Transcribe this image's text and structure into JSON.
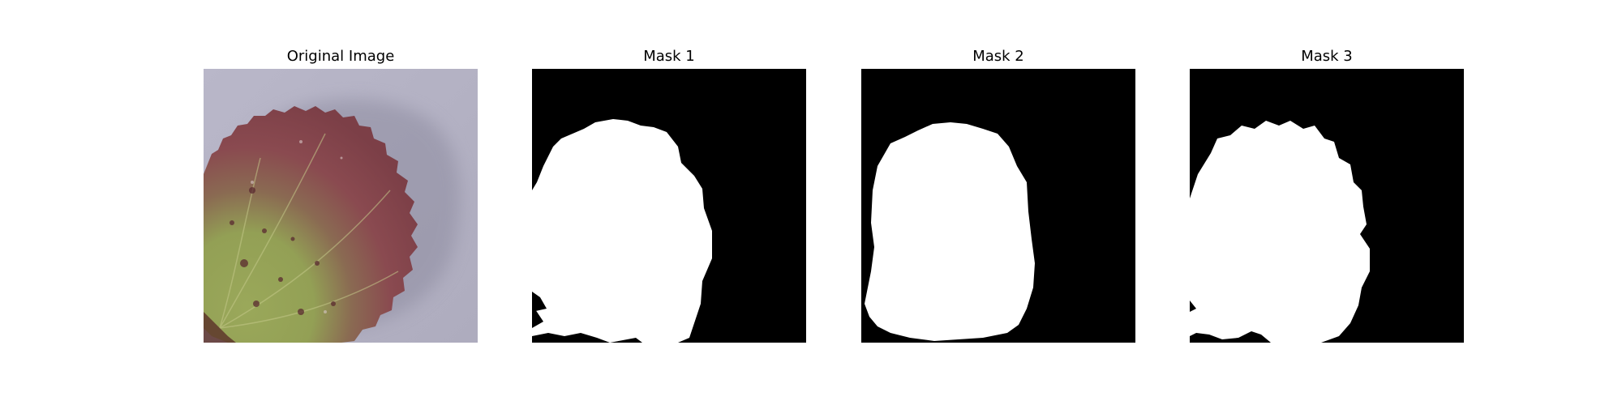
{
  "figure": {
    "panels": [
      {
        "title": "Original Image",
        "kind": "photo",
        "subject": "leaf-photo"
      },
      {
        "title": "Mask 1",
        "kind": "mask",
        "subject": "leaf-mask"
      },
      {
        "title": "Mask 2",
        "kind": "mask",
        "subject": "leaf-mask"
      },
      {
        "title": "Mask 3",
        "kind": "mask",
        "subject": "leaf-mask"
      }
    ]
  },
  "colors": {
    "mask_background": "#000000",
    "mask_foreground": "#ffffff",
    "photo_background": "#b4b2c4",
    "leaf_red": "#8a4a50",
    "leaf_green": "#9aa85a"
  }
}
